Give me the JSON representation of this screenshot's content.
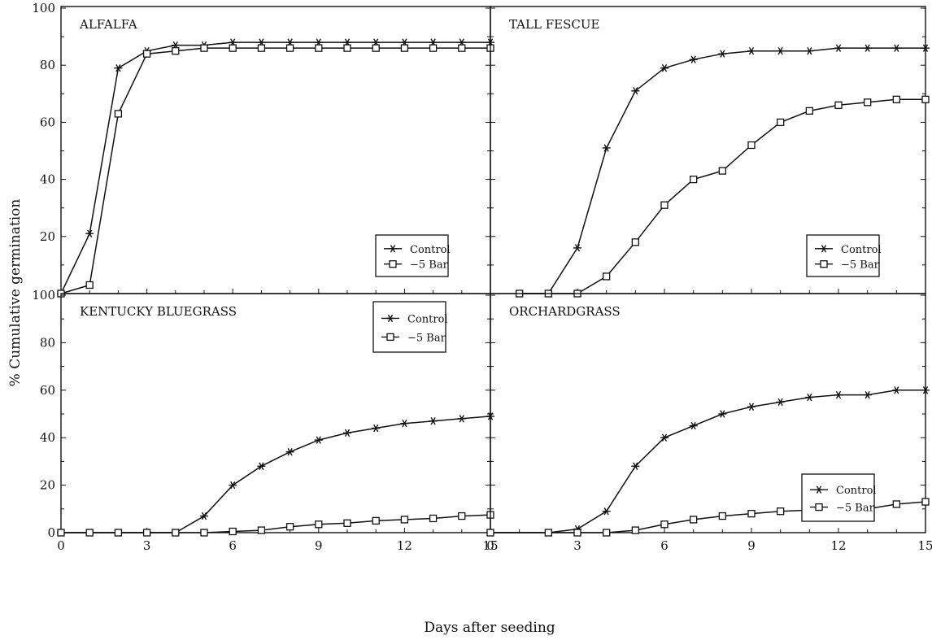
{
  "figure": {
    "ylabel": "% Cumulative germination",
    "xlabel": "Days after seeding",
    "x_ticks": [
      "0",
      "3",
      "6",
      "9",
      "12",
      "15"
    ],
    "y_ticks_top": [
      "100",
      "80",
      "60",
      "40",
      "20"
    ],
    "y_ticks_bottom": [
      "100",
      "80",
      "60",
      "40",
      "20",
      "0"
    ],
    "colors": {
      "ink": "#111111",
      "background": "#ffffff"
    }
  },
  "chart_data": [
    {
      "type": "line",
      "title": "ALFALFA",
      "xlim": [
        0,
        15
      ],
      "ylim": [
        0,
        100
      ],
      "xlabel": "Days after seeding",
      "ylabel": "% Cumulative germination",
      "legend": "bottom-right",
      "series": [
        {
          "name": "Control",
          "marker": "asterisk",
          "x": [
            0,
            1,
            2,
            3,
            4,
            5,
            6,
            7,
            8,
            9,
            10,
            11,
            12,
            13,
            14,
            15
          ],
          "y": [
            0,
            21,
            79,
            85,
            87,
            87,
            88,
            88,
            88,
            88,
            88,
            88,
            88,
            88,
            88,
            88
          ]
        },
        {
          "name": "−5 Bar",
          "marker": "square",
          "x": [
            0,
            1,
            2,
            3,
            4,
            5,
            6,
            7,
            8,
            9,
            10,
            11,
            12,
            13,
            14,
            15
          ],
          "y": [
            0,
            3,
            63,
            84,
            85,
            86,
            86,
            86,
            86,
            86,
            86,
            86,
            86,
            86,
            86,
            86
          ]
        }
      ]
    },
    {
      "type": "line",
      "title": "TALL FESCUE",
      "xlim": [
        0,
        15
      ],
      "ylim": [
        0,
        100
      ],
      "xlabel": "Days after seeding",
      "ylabel": "% Cumulative germination",
      "legend": "bottom-right",
      "series": [
        {
          "name": "Control",
          "marker": "asterisk",
          "x": [
            1,
            2,
            3,
            4,
            5,
            6,
            7,
            8,
            9,
            10,
            11,
            12,
            13,
            14,
            15
          ],
          "y": [
            0,
            0,
            16,
            51,
            71,
            79,
            82,
            84,
            85,
            85,
            85,
            86,
            86,
            86,
            86
          ]
        },
        {
          "name": "−5 Bar",
          "marker": "square",
          "x": [
            1,
            2,
            3,
            4,
            5,
            6,
            7,
            8,
            9,
            10,
            11,
            12,
            13,
            14,
            15
          ],
          "y": [
            0,
            0,
            0,
            6,
            18,
            31,
            40,
            43,
            52,
            60,
            64,
            66,
            67,
            68,
            68
          ]
        }
      ]
    },
    {
      "type": "line",
      "title": "KENTUCKY BLUEGRASS",
      "xlim": [
        0,
        15
      ],
      "ylim": [
        0,
        100
      ],
      "xlabel": "Days after seeding",
      "ylabel": "% Cumulative germination",
      "legend": "top-right",
      "series": [
        {
          "name": "Control",
          "marker": "asterisk",
          "x": [
            0,
            1,
            2,
            3,
            4,
            5,
            6,
            7,
            8,
            9,
            10,
            11,
            12,
            13,
            14,
            15
          ],
          "y": [
            0,
            0,
            0,
            0,
            0,
            7,
            20,
            28,
            34,
            39,
            42,
            44,
            46,
            47,
            48,
            49
          ]
        },
        {
          "name": "−5 Bar",
          "marker": "square",
          "x": [
            0,
            1,
            2,
            3,
            4,
            5,
            6,
            7,
            8,
            9,
            10,
            11,
            12,
            13,
            14,
            15
          ],
          "y": [
            0,
            0,
            0,
            0,
            0,
            0,
            0.5,
            1,
            2.5,
            3.5,
            4,
            5,
            5.5,
            6,
            7,
            7.5
          ]
        }
      ]
    },
    {
      "type": "line",
      "title": "ORCHARDGRASS",
      "xlim": [
        0,
        15
      ],
      "ylim": [
        0,
        100
      ],
      "xlabel": "Days after seeding",
      "ylabel": "% Cumulative germination",
      "legend": "bottom-right",
      "series": [
        {
          "name": "Control",
          "marker": "asterisk",
          "x": [
            0,
            2,
            3,
            4,
            5,
            6,
            7,
            8,
            9,
            10,
            11,
            12,
            13,
            14,
            15
          ],
          "y": [
            0,
            0,
            1.5,
            9,
            28,
            40,
            45,
            50,
            53,
            55,
            57,
            58,
            58,
            60,
            60
          ]
        },
        {
          "name": "−5 Bar",
          "marker": "square",
          "x": [
            0,
            2,
            3,
            4,
            5,
            6,
            7,
            8,
            9,
            10,
            11,
            12,
            13,
            14,
            15
          ],
          "y": [
            0,
            0,
            0,
            0,
            1,
            3.5,
            5.5,
            7,
            8,
            9,
            9.5,
            9.5,
            10,
            12,
            13
          ]
        }
      ]
    }
  ]
}
